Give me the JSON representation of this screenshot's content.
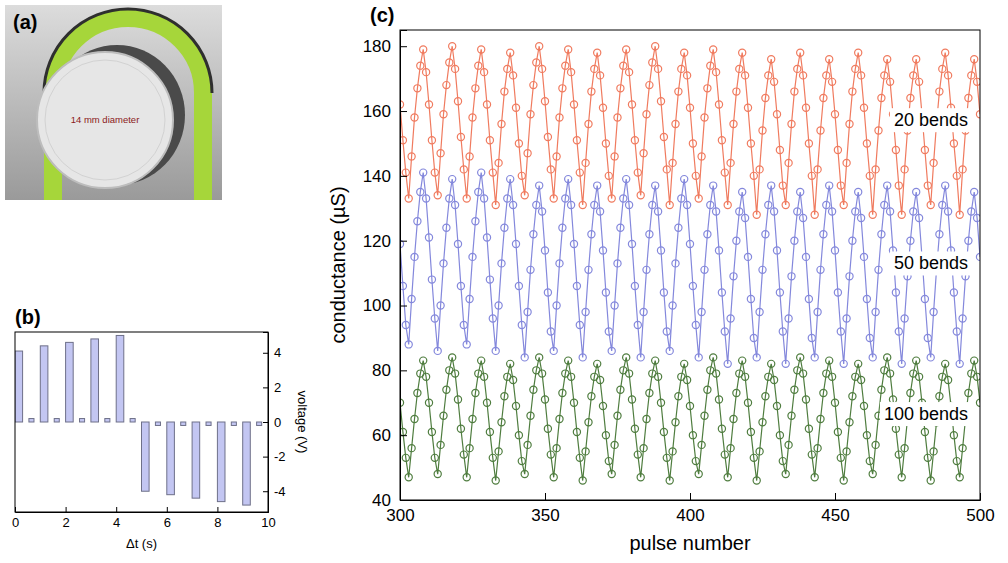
{
  "illustration": {
    "label": "(a)",
    "text": "14 mm diameter"
  },
  "chart_data": [
    {
      "type": "bar",
      "title": "(b)",
      "x_label": "Δt (s)",
      "y_label": "voltage (V)",
      "color": "#c3c6f2",
      "x_start": [
        0,
        0.55,
        1,
        1.55,
        2,
        2.55,
        3,
        3.55,
        4,
        4.55,
        5,
        5.55,
        6,
        6.55,
        7,
        7.55,
        8,
        8.55,
        9,
        9.55
      ],
      "x_end": [
        0.3,
        0.75,
        1.3,
        1.75,
        2.3,
        2.75,
        3.3,
        3.75,
        4.3,
        4.75,
        5.3,
        5.75,
        6.3,
        6.75,
        7.3,
        7.75,
        8.3,
        8.75,
        9.3,
        9.75
      ],
      "values": [
        4.1,
        0.2,
        4.4,
        0.2,
        4.6,
        0.2,
        4.8,
        0.2,
        5.0,
        0.2,
        -4.0,
        -0.2,
        -4.2,
        -0.2,
        -4.4,
        -0.2,
        -4.6,
        -0.2,
        -4.8,
        -0.2
      ],
      "xlim": [
        0,
        10
      ],
      "xticks": [
        0,
        2,
        4,
        6,
        8,
        10
      ],
      "ylim": [
        -5.2,
        5.2
      ],
      "yticks": [
        -4,
        -2,
        0,
        2,
        4
      ]
    },
    {
      "type": "line",
      "title": "(c)",
      "x_label": "pulse number",
      "y_label": "conductance (µS)",
      "x": [
        300,
        301,
        302,
        303,
        304,
        305,
        306,
        307,
        308,
        309,
        310,
        311,
        312,
        313,
        314,
        315,
        316,
        317,
        318,
        319,
        320,
        321,
        322,
        323,
        324,
        325,
        326,
        327,
        328,
        329,
        330,
        331,
        332,
        333,
        334,
        335,
        336,
        337,
        338,
        339,
        340,
        341,
        342,
        343,
        344,
        345,
        346,
        347,
        348,
        349,
        350,
        351,
        352,
        353,
        354,
        355,
        356,
        357,
        358,
        359,
        360,
        361,
        362,
        363,
        364,
        365,
        366,
        367,
        368,
        369,
        370,
        371,
        372,
        373,
        374,
        375,
        376,
        377,
        378,
        379,
        380,
        381,
        382,
        383,
        384,
        385,
        386,
        387,
        388,
        389,
        390,
        391,
        392,
        393,
        394,
        395,
        396,
        397,
        398,
        399,
        400,
        401,
        402,
        403,
        404,
        405,
        406,
        407,
        408,
        409,
        410,
        411,
        412,
        413,
        414,
        415,
        416,
        417,
        418,
        419,
        420,
        421,
        422,
        423,
        424,
        425,
        426,
        427,
        428,
        429,
        430,
        431,
        432,
        433,
        434,
        435,
        436,
        437,
        438,
        439,
        440,
        441,
        442,
        443,
        444,
        445,
        446,
        447,
        448,
        449,
        450,
        451,
        452,
        453,
        454,
        455,
        456,
        457,
        458,
        459,
        460,
        461,
        462,
        463,
        464,
        465,
        466,
        467,
        468,
        469,
        470,
        471,
        472,
        473,
        474,
        475,
        476,
        477,
        478,
        479,
        480,
        481,
        482,
        483,
        484,
        485,
        486,
        487,
        488,
        489,
        490,
        491,
        492,
        493,
        494,
        495,
        496,
        497,
        498,
        499,
        500
      ],
      "series": [
        {
          "name": "20 bends",
          "color": "#f07b5f",
          "marker": "circle",
          "values": [
            162,
            151,
            141,
            133,
            146,
            158,
            167,
            174,
            179,
            172,
            162,
            151,
            141,
            134,
            147,
            159,
            168,
            175,
            180,
            173,
            163,
            152,
            142,
            133,
            146,
            158,
            167,
            174,
            179,
            172,
            162,
            151,
            141,
            131,
            144,
            156,
            166,
            173,
            178,
            171,
            161,
            150,
            140,
            134,
            147,
            159,
            168,
            175,
            180,
            173,
            163,
            152,
            142,
            133,
            146,
            158,
            167,
            174,
            179,
            172,
            162,
            151,
            141,
            131,
            144,
            156,
            166,
            173,
            178,
            171,
            161,
            150,
            140,
            133,
            146,
            158,
            167,
            174,
            179,
            172,
            162,
            151,
            141,
            134,
            147,
            159,
            168,
            175,
            180,
            173,
            163,
            152,
            142,
            131,
            144,
            156,
            166,
            173,
            178,
            171,
            161,
            150,
            140,
            133,
            146,
            158,
            167,
            174,
            179,
            172,
            162,
            151,
            141,
            131,
            144,
            156,
            166,
            173,
            178,
            171,
            161,
            150,
            140,
            128,
            142,
            154,
            164,
            171,
            176,
            169,
            159,
            148,
            137,
            131,
            144,
            156,
            166,
            173,
            178,
            171,
            161,
            150,
            140,
            128,
            142,
            154,
            164,
            171,
            176,
            169,
            159,
            148,
            137,
            131,
            144,
            156,
            166,
            173,
            178,
            171,
            161,
            150,
            140,
            128,
            142,
            154,
            164,
            171,
            176,
            169,
            159,
            148,
            137,
            128,
            142,
            154,
            164,
            171,
            176,
            169,
            159,
            148,
            137,
            131,
            144,
            156,
            166,
            173,
            178,
            171,
            161,
            150,
            140,
            128,
            142,
            154,
            164,
            171,
            176,
            169,
            159
          ]
        },
        {
          "name": "50 bends",
          "color": "#8488dc",
          "marker": "circle",
          "values": [
            119,
            106,
            94,
            88,
            102,
            115,
            126,
            135,
            141,
            133,
            121,
            108,
            96,
            86,
            100,
            113,
            124,
            133,
            139,
            131,
            119,
            106,
            94,
            88,
            102,
            115,
            126,
            135,
            141,
            133,
            121,
            108,
            96,
            86,
            100,
            113,
            124,
            133,
            139,
            131,
            119,
            106,
            94,
            84,
            98,
            111,
            122,
            131,
            137,
            129,
            117,
            104,
            92,
            86,
            100,
            113,
            124,
            133,
            139,
            131,
            119,
            106,
            94,
            84,
            98,
            111,
            122,
            131,
            137,
            129,
            117,
            104,
            92,
            86,
            100,
            113,
            124,
            133,
            139,
            131,
            119,
            106,
            94,
            84,
            98,
            111,
            122,
            131,
            137,
            129,
            117,
            104,
            92,
            86,
            100,
            113,
            124,
            133,
            139,
            131,
            119,
            106,
            94,
            84,
            98,
            111,
            122,
            131,
            137,
            129,
            117,
            104,
            92,
            82,
            96,
            109,
            120,
            129,
            135,
            127,
            115,
            102,
            90,
            84,
            98,
            111,
            122,
            131,
            137,
            129,
            117,
            104,
            92,
            82,
            96,
            109,
            120,
            129,
            135,
            127,
            115,
            102,
            90,
            84,
            98,
            111,
            122,
            131,
            137,
            129,
            117,
            104,
            92,
            82,
            96,
            109,
            120,
            129,
            135,
            127,
            115,
            102,
            90,
            84,
            98,
            111,
            122,
            131,
            137,
            129,
            117,
            104,
            92,
            82,
            96,
            109,
            120,
            129,
            135,
            127,
            115,
            102,
            90,
            84,
            98,
            111,
            122,
            131,
            137,
            129,
            117,
            104,
            92,
            82,
            96,
            109,
            120,
            129,
            135,
            127,
            115
          ]
        },
        {
          "name": "100 bends",
          "color": "#4f7d3f",
          "marker": "circle",
          "values": [
            70,
            61,
            53,
            47,
            56,
            65,
            73,
            79,
            83,
            78,
            70,
            61,
            53,
            48,
            57,
            66,
            74,
            80,
            84,
            79,
            71,
            62,
            54,
            47,
            56,
            65,
            73,
            79,
            83,
            78,
            70,
            61,
            53,
            46,
            55,
            64,
            72,
            78,
            82,
            77,
            69,
            60,
            52,
            48,
            57,
            66,
            74,
            80,
            84,
            79,
            71,
            62,
            54,
            47,
            56,
            65,
            73,
            79,
            83,
            78,
            70,
            61,
            53,
            46,
            55,
            64,
            72,
            78,
            82,
            77,
            69,
            60,
            52,
            48,
            57,
            66,
            74,
            80,
            84,
            79,
            71,
            62,
            54,
            47,
            56,
            65,
            73,
            79,
            83,
            78,
            70,
            61,
            53,
            46,
            55,
            64,
            72,
            78,
            82,
            77,
            69,
            60,
            52,
            48,
            57,
            66,
            74,
            80,
            84,
            79,
            71,
            62,
            54,
            47,
            56,
            65,
            73,
            79,
            83,
            78,
            70,
            61,
            53,
            46,
            55,
            64,
            72,
            78,
            82,
            77,
            69,
            60,
            52,
            48,
            57,
            66,
            74,
            80,
            84,
            79,
            71,
            62,
            54,
            47,
            56,
            65,
            73,
            79,
            83,
            78,
            70,
            61,
            53,
            46,
            55,
            64,
            72,
            78,
            82,
            77,
            69,
            60,
            52,
            48,
            57,
            66,
            74,
            80,
            84,
            79,
            71,
            62,
            54,
            47,
            56,
            65,
            73,
            79,
            83,
            78,
            70,
            61,
            53,
            46,
            55,
            64,
            72,
            78,
            82,
            77,
            69,
            60,
            52,
            47,
            56,
            65,
            73,
            79,
            83,
            78,
            70
          ]
        }
      ],
      "xlim": [
        300,
        500
      ],
      "xticks": [
        300,
        350,
        400,
        450,
        500
      ],
      "ylim": [
        40,
        185
      ],
      "yticks": [
        40,
        60,
        80,
        100,
        120,
        140,
        160,
        180
      ]
    }
  ]
}
